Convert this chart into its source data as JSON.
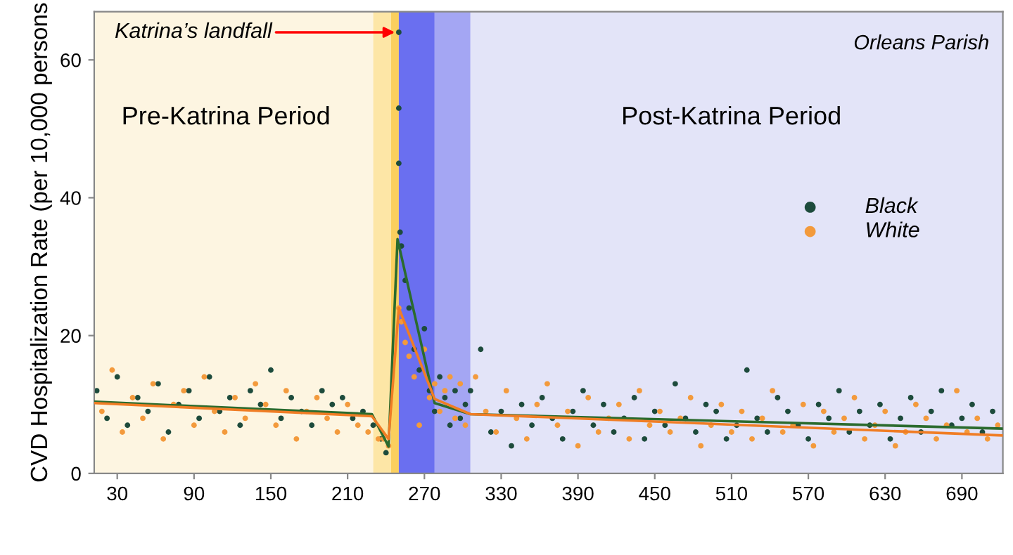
{
  "chart_data": {
    "type": "scatter",
    "ylabel": "CVD Hospitalization Rate (per 10,000 persons",
    "xlim": [
      12,
      722
    ],
    "ylim": [
      0,
      67
    ],
    "xticks": [
      30,
      90,
      150,
      210,
      270,
      330,
      390,
      450,
      510,
      570,
      630,
      690
    ],
    "yticks": [
      0,
      20,
      40,
      60
    ],
    "grid": false,
    "legend": "right",
    "bands": [
      {
        "axis": "x",
        "from": 12,
        "to": 230,
        "color": "#fdf5e1"
      },
      {
        "axis": "x",
        "from": 230,
        "to": 244,
        "color": "#fde6a6"
      },
      {
        "axis": "x",
        "from": 244,
        "to": 250,
        "color": "#fbcf5e"
      },
      {
        "axis": "x",
        "from": 250,
        "to": 278,
        "color": "#6a6ff0"
      },
      {
        "axis": "x",
        "from": 278,
        "to": 306,
        "color": "#a4a6f3"
      },
      {
        "axis": "x",
        "from": 306,
        "to": 722,
        "color": "#e3e4f8"
      }
    ],
    "annotations": [
      {
        "text": "Katrina’s landfall",
        "x": 250,
        "y": 64
      },
      "Pre-Katrina Period",
      "Post-Katrina Period",
      "Orleans Parish"
    ],
    "series": [
      {
        "name": "Black",
        "color": "#1d4b3c",
        "x": [
          14,
          22,
          30,
          38,
          46,
          54,
          62,
          70,
          78,
          86,
          94,
          102,
          110,
          118,
          126,
          134,
          142,
          150,
          158,
          166,
          174,
          182,
          190,
          198,
          206,
          214,
          222,
          230,
          236,
          240,
          250,
          250,
          250,
          251,
          252,
          255,
          258,
          262,
          266,
          270,
          274,
          278,
          282,
          286,
          290,
          294,
          298,
          302,
          306,
          314,
          322,
          330,
          338,
          346,
          354,
          362,
          370,
          378,
          386,
          394,
          402,
          410,
          418,
          426,
          434,
          442,
          450,
          458,
          466,
          474,
          482,
          490,
          498,
          506,
          514,
          522,
          530,
          538,
          546,
          554,
          562,
          570,
          578,
          586,
          594,
          602,
          610,
          618,
          626,
          634,
          642,
          650,
          658,
          666,
          674,
          682,
          690,
          698,
          706,
          714
        ],
        "values": [
          12,
          8,
          14,
          7,
          11,
          9,
          13,
          6,
          10,
          12,
          8,
          14,
          9,
          11,
          7,
          12,
          10,
          15,
          8,
          11,
          9,
          7,
          12,
          10,
          11,
          8,
          9,
          7,
          5,
          3,
          64,
          53,
          45,
          35,
          33,
          28,
          24,
          18,
          15,
          21,
          12,
          9,
          14,
          11,
          7,
          12,
          8,
          10,
          12,
          18,
          6,
          9,
          4,
          10,
          7,
          11,
          8,
          5,
          9,
          12,
          7,
          10,
          6,
          8,
          11,
          5,
          9,
          7,
          13,
          8,
          6,
          10,
          9,
          5,
          7,
          15,
          8,
          6,
          11,
          9,
          7,
          5,
          10,
          8,
          12,
          6,
          9,
          7,
          10,
          5,
          8,
          11,
          6,
          9,
          12,
          7,
          8,
          10,
          6,
          9
        ]
      },
      {
        "name": "White",
        "color": "#f39a3c",
        "x": [
          18,
          26,
          34,
          42,
          50,
          58,
          66,
          74,
          82,
          90,
          98,
          106,
          114,
          122,
          130,
          138,
          146,
          154,
          162,
          170,
          178,
          186,
          194,
          202,
          210,
          218,
          226,
          234,
          238,
          242,
          250,
          252,
          255,
          258,
          262,
          266,
          270,
          274,
          278,
          282,
          286,
          290,
          294,
          298,
          302,
          310,
          318,
          326,
          334,
          342,
          350,
          358,
          366,
          374,
          382,
          390,
          398,
          406,
          414,
          422,
          430,
          438,
          446,
          454,
          462,
          470,
          478,
          486,
          494,
          502,
          510,
          518,
          526,
          534,
          542,
          550,
          558,
          566,
          574,
          582,
          590,
          598,
          606,
          614,
          622,
          630,
          638,
          646,
          654,
          662,
          670,
          678,
          686,
          694,
          702,
          710,
          718
        ],
        "values": [
          9,
          15,
          6,
          11,
          8,
          13,
          5,
          10,
          12,
          7,
          14,
          9,
          6,
          11,
          8,
          13,
          10,
          7,
          12,
          5,
          9,
          11,
          8,
          6,
          10,
          7,
          6,
          5,
          5,
          4,
          24,
          22,
          19,
          17,
          14,
          7,
          18,
          11,
          13,
          9,
          12,
          14,
          8,
          13,
          7,
          14,
          9,
          6,
          12,
          8,
          5,
          10,
          13,
          7,
          9,
          4,
          11,
          6,
          8,
          10,
          5,
          12,
          7,
          9,
          6,
          8,
          11,
          4,
          7,
          10,
          6,
          9,
          5,
          8,
          12,
          6,
          7,
          10,
          4,
          9,
          6,
          8,
          11,
          5,
          7,
          9,
          4,
          6,
          10,
          8,
          5,
          7,
          12,
          6,
          8,
          5,
          7
        ]
      },
      {
        "type": "line",
        "color": "#2b6b2e",
        "x": [
          13,
          229,
          242,
          249,
          278,
          306,
          722
        ],
        "values": [
          10.4,
          8.6,
          3.9,
          34,
          10.2,
          8.6,
          6.5
        ]
      },
      {
        "type": "line",
        "color": "#f07d25",
        "x": [
          13,
          229,
          242,
          250,
          278,
          306,
          722
        ],
        "values": [
          10.2,
          8.3,
          5,
          24,
          10.8,
          8.6,
          5.5
        ]
      }
    ]
  }
}
